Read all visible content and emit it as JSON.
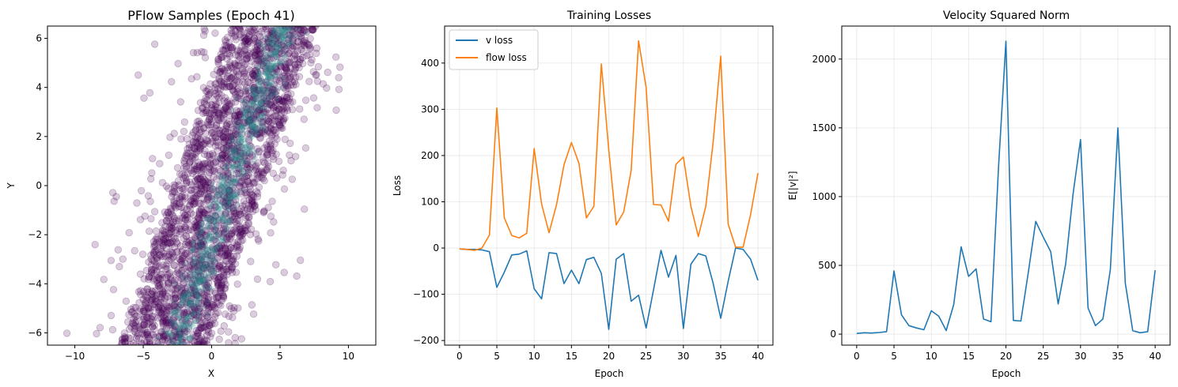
{
  "figure": {
    "background": "#ffffff"
  },
  "charts": [
    {
      "id": "scatter",
      "title": "PFlow Samples (Epoch 41)",
      "xlabel": "X",
      "ylabel": "Y",
      "xlim": [
        -12,
        12
      ],
      "ylim": [
        -6.5,
        6.5
      ],
      "xticks": [
        -10,
        -5,
        0,
        5,
        10
      ],
      "yticks": [
        -6,
        -4,
        -2,
        0,
        2,
        4,
        6
      ],
      "grid": false
    },
    {
      "id": "losses",
      "title": "Training Losses",
      "xlabel": "Epoch",
      "ylabel": "Loss",
      "xlim": [
        -2,
        42
      ],
      "ylim": [
        -210,
        480
      ],
      "xticks": [
        0,
        5,
        10,
        15,
        20,
        25,
        30,
        35,
        40
      ],
      "yticks": [
        -200,
        -100,
        0,
        100,
        200,
        300,
        400
      ],
      "grid": true,
      "legend_position": "top-left"
    },
    {
      "id": "velocity",
      "title": "Velocity Squared Norm",
      "xlabel": "Epoch",
      "ylabel": "E[|v|²]",
      "xlim": [
        -2,
        42
      ],
      "ylim": [
        -80,
        2240
      ],
      "xticks": [
        0,
        5,
        10,
        15,
        20,
        25,
        30,
        35,
        40
      ],
      "yticks": [
        0,
        500,
        1000,
        1500,
        2000
      ],
      "grid": true
    }
  ],
  "chart_data": [
    {
      "type": "scatter",
      "title": "PFlow Samples (Epoch 41)",
      "xlabel": "X",
      "ylabel": "Y",
      "xlim": [
        -12,
        12
      ],
      "ylim": [
        -6.5,
        6.5
      ],
      "point_color": "#440154",
      "point_alpha": 0.2,
      "density_center_color": "#21918c",
      "description_band": {
        "trend_points": [
          [
            -3.5,
            -6.5
          ],
          [
            4.5,
            6.5
          ]
        ],
        "approx_half_width_x": 3.2
      }
    },
    {
      "type": "line",
      "title": "Training Losses",
      "xlabel": "Epoch",
      "ylabel": "Loss",
      "ylim": [
        -210,
        480
      ],
      "x": [
        0,
        1,
        2,
        3,
        4,
        5,
        6,
        7,
        8,
        9,
        10,
        11,
        12,
        13,
        14,
        15,
        16,
        17,
        18,
        19,
        20,
        21,
        22,
        23,
        24,
        25,
        26,
        27,
        28,
        29,
        30,
        31,
        32,
        33,
        34,
        35,
        36,
        37,
        38,
        39,
        40
      ],
      "series": [
        {
          "name": "v loss",
          "color": "#1f77b4",
          "values": [
            -2,
            -3,
            -3,
            -4,
            -8,
            -85,
            -52,
            -15,
            -13,
            -6,
            -88,
            -110,
            -10,
            -12,
            -77,
            -48,
            -77,
            -25,
            -20,
            -55,
            -176,
            -24,
            -12,
            -115,
            -102,
            -173,
            -90,
            -5,
            -63,
            -16,
            -174,
            -35,
            -12,
            -17,
            -77,
            -152,
            -72,
            0,
            -3,
            -24,
            -70
          ]
        },
        {
          "name": "flow loss",
          "color": "#ff7f0e",
          "values": [
            -2,
            -3,
            -5,
            0,
            28,
            303,
            65,
            27,
            22,
            32,
            215,
            95,
            33,
            94,
            180,
            228,
            183,
            65,
            90,
            398,
            212,
            50,
            78,
            168,
            448,
            347,
            94,
            93,
            58,
            181,
            197,
            90,
            25,
            90,
            230,
            415,
            52,
            2,
            2,
            72,
            162
          ]
        }
      ]
    },
    {
      "type": "line",
      "title": "Velocity Squared Norm",
      "xlabel": "Epoch",
      "ylabel": "E[|v|²]",
      "ylim": [
        -80,
        2240
      ],
      "x": [
        0,
        1,
        2,
        3,
        4,
        5,
        6,
        7,
        8,
        9,
        10,
        11,
        12,
        13,
        14,
        15,
        16,
        17,
        18,
        19,
        20,
        21,
        22,
        23,
        24,
        25,
        26,
        27,
        28,
        29,
        30,
        31,
        32,
        33,
        34,
        35,
        36,
        37,
        38,
        39,
        40
      ],
      "series": [
        {
          "color": "#1f77b4",
          "values": [
            5,
            10,
            8,
            12,
            18,
            460,
            140,
            62,
            45,
            32,
            170,
            130,
            26,
            215,
            635,
            420,
            475,
            110,
            90,
            1210,
            2130,
            100,
            95,
            450,
            820,
            705,
            600,
            220,
            510,
            1020,
            1415,
            190,
            62,
            110,
            470,
            1500,
            370,
            25,
            10,
            18,
            465
          ]
        }
      ]
    }
  ]
}
